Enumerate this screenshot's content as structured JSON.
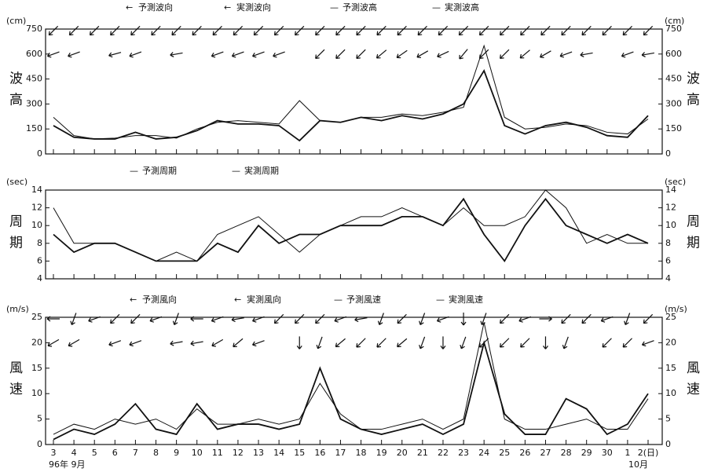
{
  "chart_data": [
    {
      "type": "line",
      "ylabel": "波高",
      "yunit": "(cm)",
      "ylim": [
        0,
        750
      ],
      "yticks": [
        0,
        150,
        300,
        450,
        600,
        750
      ],
      "series": [
        {
          "name": "予測波向",
          "style": "arrow",
          "color": "#111111",
          "values": [
            225,
            225,
            225,
            225,
            225,
            225,
            225,
            225,
            225,
            225,
            225,
            225,
            225,
            225,
            225,
            225,
            225,
            225,
            225,
            225,
            225,
            225,
            225,
            225,
            225,
            225,
            225,
            225,
            225,
            225
          ]
        },
        {
          "name": "実測波向",
          "style": "arrow",
          "color": "#111111",
          "values": [
            250,
            250,
            null,
            255,
            250,
            null,
            260,
            null,
            250,
            250,
            250,
            250,
            null,
            225,
            225,
            225,
            230,
            235,
            240,
            245,
            220,
            225,
            225,
            230,
            240,
            250,
            260,
            null,
            250,
            260
          ]
        },
        {
          "name": "予測波高",
          "style": "line",
          "line_width": 1,
          "color": "#111111",
          "values": [
            220,
            110,
            90,
            95,
            110,
            110,
            95,
            150,
            190,
            200,
            190,
            180,
            320,
            200,
            190,
            220,
            220,
            240,
            230,
            250,
            280,
            650,
            220,
            150,
            160,
            180,
            170,
            130,
            120,
            210
          ]
        },
        {
          "name": "実測波高",
          "style": "line",
          "line_width": 1.8,
          "color": "#111111",
          "values": [
            170,
            100,
            90,
            90,
            130,
            90,
            100,
            140,
            200,
            180,
            180,
            170,
            80,
            200,
            190,
            220,
            200,
            230,
            210,
            240,
            300,
            500,
            170,
            120,
            170,
            190,
            160,
            110,
            100,
            230
          ]
        }
      ]
    },
    {
      "type": "line",
      "ylabel": "周期",
      "yunit": "(sec)",
      "ylim": [
        4,
        14
      ],
      "yticks": [
        4,
        6,
        8,
        10,
        12,
        14
      ],
      "series": [
        {
          "name": "予測周期",
          "style": "line",
          "line_width": 1,
          "color": "#111111",
          "values": [
            12,
            8,
            8,
            8,
            7,
            6,
            7,
            6,
            9,
            10,
            11,
            9,
            7,
            9,
            10,
            11,
            11,
            12,
            11,
            10,
            12,
            10,
            10,
            11,
            14,
            12,
            8,
            9,
            8,
            8
          ]
        },
        {
          "name": "実測周期",
          "style": "line",
          "line_width": 1.8,
          "color": "#111111",
          "values": [
            9,
            7,
            8,
            8,
            7,
            6,
            6,
            6,
            8,
            7,
            10,
            8,
            9,
            9,
            10,
            10,
            10,
            11,
            11,
            10,
            13,
            9,
            6,
            10,
            13,
            10,
            9,
            8,
            9,
            8
          ]
        }
      ]
    },
    {
      "type": "line",
      "ylabel": "風速",
      "yunit": "(m/s)",
      "xlabel": "96年 9月",
      "xlabel_right": "10月",
      "categories": [
        "3",
        "4",
        "5",
        "6",
        "7",
        "8",
        "9",
        "10",
        "11",
        "12",
        "13",
        "14",
        "15",
        "16",
        "17",
        "18",
        "19",
        "20",
        "21",
        "22",
        "23",
        "24",
        "25",
        "26",
        "27",
        "28",
        "29",
        "30",
        "1",
        "2(日)"
      ],
      "ylim": [
        0,
        25
      ],
      "yticks": [
        0,
        5,
        10,
        15,
        20,
        25
      ],
      "series": [
        {
          "name": "予測風向",
          "style": "arrow",
          "color": "#111111",
          "values": [
            270,
            200,
            250,
            225,
            225,
            250,
            200,
            270,
            250,
            260,
            250,
            225,
            225,
            225,
            250,
            260,
            200,
            225,
            200,
            250,
            180,
            200,
            225,
            250,
            90,
            225,
            225,
            250,
            200,
            225
          ]
        },
        {
          "name": "実測風向",
          "style": "arrow",
          "color": "#111111",
          "values": [
            240,
            240,
            null,
            250,
            250,
            null,
            260,
            260,
            240,
            230,
            250,
            null,
            180,
            200,
            230,
            225,
            225,
            230,
            200,
            180,
            200,
            225,
            225,
            225,
            180,
            200,
            null,
            225,
            225,
            250
          ]
        },
        {
          "name": "予測風速",
          "style": "line",
          "line_width": 1,
          "color": "#111111",
          "values": [
            2,
            4,
            3,
            5,
            4,
            5,
            3,
            7,
            4,
            4,
            5,
            4,
            5,
            12,
            6,
            3,
            3,
            4,
            5,
            3,
            5,
            24,
            5,
            3,
            3,
            4,
            5,
            3,
            3,
            9
          ]
        },
        {
          "name": "実測風速",
          "style": "line",
          "line_width": 1.8,
          "color": "#111111",
          "values": [
            1,
            3,
            2,
            4,
            8,
            3,
            2,
            8,
            3,
            4,
            4,
            3,
            4,
            15,
            5,
            3,
            2,
            3,
            4,
            2,
            4,
            20,
            6,
            2,
            2,
            9,
            7,
            2,
            4,
            10
          ]
        }
      ]
    }
  ]
}
